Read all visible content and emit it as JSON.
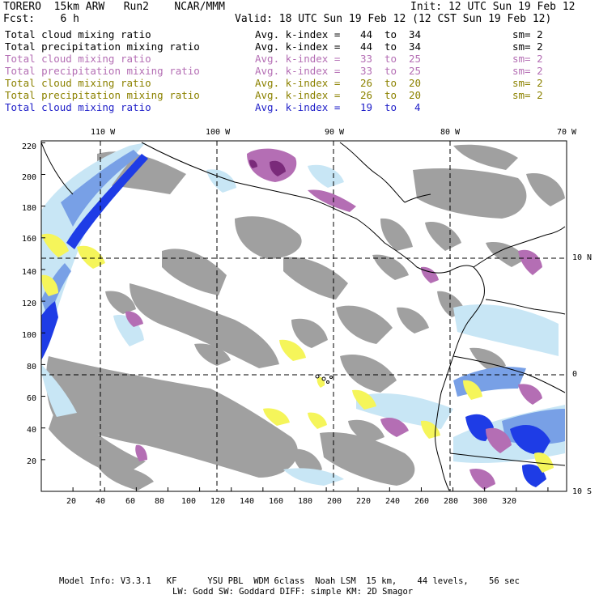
{
  "header": {
    "model": "TORERO  15km ARW   Run2    NCAR/MMM",
    "init": "Init: 12 UTC Sun 19 Feb 12",
    "fcst": "Fcst:    6 h",
    "valid": "Valid: 18 UTC Sun 19 Feb 12 (12 CST Sun 19 Feb 12)"
  },
  "legend": [
    {
      "field": "Total cloud mixing ratio",
      "idx_label": "Avg. k-index =",
      "from": "44",
      "to_word": "to",
      "to": "34",
      "sm": "sm= 2",
      "color": "#000000"
    },
    {
      "field": "Total precipitation mixing ratio",
      "idx_label": "Avg. k-index =",
      "from": "44",
      "to_word": "to",
      "to": "34",
      "sm": "sm= 2",
      "color": "#000000"
    },
    {
      "field": "Total cloud mixing ratio",
      "idx_label": "Avg. k-index =",
      "from": "33",
      "to_word": "to",
      "to": "25",
      "sm": "sm= 2",
      "color": "#b46eb4"
    },
    {
      "field": "Total precipitation mixing ratio",
      "idx_label": "Avg. k-index =",
      "from": "33",
      "to_word": "to",
      "to": "25",
      "sm": "sm= 2",
      "color": "#b46eb4"
    },
    {
      "field": "Total cloud mixing ratio",
      "idx_label": "Avg. k-index =",
      "from": "26",
      "to_word": "to",
      "to": "20",
      "sm": "sm= 2",
      "color": "#8c8200"
    },
    {
      "field": "Total precipitation mixing ratio",
      "idx_label": "Avg. k-index =",
      "from": "26",
      "to_word": "to",
      "to": "20",
      "sm": "sm= 2",
      "color": "#8c8200"
    },
    {
      "field": "Total cloud mixing ratio",
      "idx_label": "Avg. k-index =",
      "from": "19",
      "to_word": "to",
      "to": "4",
      "sm": "",
      "color": "#1e1ec8"
    }
  ],
  "axes": {
    "lon_labels": [
      "110 W",
      "100 W",
      "90 W",
      "80 W",
      "70 W"
    ],
    "lat_labels": [
      "10 N",
      "0",
      "10 S"
    ],
    "x_ticks": [
      "20",
      "40",
      "60",
      "80",
      "100",
      "120",
      "140",
      "160",
      "180",
      "200",
      "220",
      "240",
      "260",
      "280",
      "300",
      "320"
    ],
    "y_ticks": [
      "220",
      "200",
      "180",
      "160",
      "140",
      "120",
      "100",
      "80",
      "60",
      "40",
      "20"
    ]
  },
  "footer": {
    "line1": "Model Info: V3.3.1   KF      YSU PBL  WDM 6class  Noah LSM  15 km,    44 levels,    56 sec",
    "line2": "LW: Godd SW: Goddard DIFF: simple KM: 2D Smagor"
  },
  "colors": {
    "gray": "#a0a0a0",
    "purple": "#b46eb4",
    "dark_purple": "#7a2a7a",
    "yellow": "#f5f55a",
    "light_blue": "#c8e6f5",
    "mid_blue": "#78a0e6",
    "blue": "#1e3ce6",
    "dark_blue": "#0a1eb4"
  }
}
